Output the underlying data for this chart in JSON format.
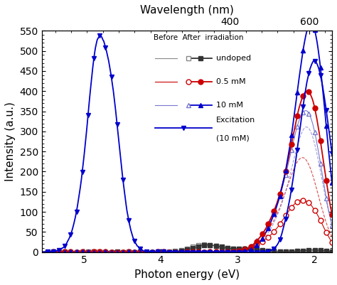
{
  "title_top": "Wavelength (nm)",
  "xlabel": "Photon energy (eV)",
  "ylabel": "Intensity (a.u.)",
  "xlim": [
    1.77,
    5.55
  ],
  "ylim": [
    0,
    550
  ],
  "yticks": [
    0,
    50,
    100,
    150,
    200,
    250,
    300,
    350,
    400,
    450,
    500,
    550
  ],
  "xticks_bottom": [
    2,
    3,
    4,
    5
  ],
  "wavelength_ticks_nm": [
    400,
    600
  ],
  "background": "#ffffff"
}
